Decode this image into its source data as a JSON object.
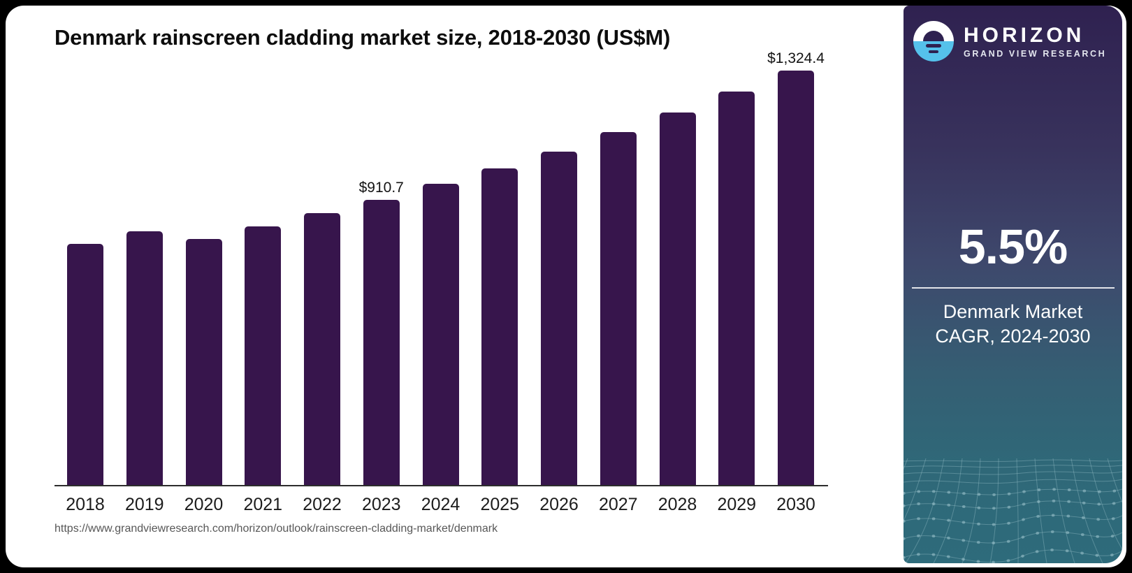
{
  "page": {
    "background": "#000000",
    "card_background": "#ffffff"
  },
  "chart_data": {
    "type": "bar",
    "title": "Denmark rainscreen cladding market size, 2018-2030 (US$M)",
    "categories": [
      "2018",
      "2019",
      "2020",
      "2021",
      "2022",
      "2023",
      "2024",
      "2025",
      "2026",
      "2027",
      "2028",
      "2029",
      "2030"
    ],
    "values": [
      770.7,
      810.2,
      787.2,
      827.4,
      868.2,
      910.7,
      962.0,
      1011.8,
      1065.4,
      1127.2,
      1189.7,
      1256.7,
      1324.4
    ],
    "data_labels": {
      "2023": "$910.7",
      "2030": "$1,324.4"
    },
    "bar_color": "#37154C",
    "xlabel": "",
    "ylabel": "",
    "ylim": [
      0,
      1400
    ],
    "grid": false,
    "legend": false,
    "axis_line_color": "#2d2d2d"
  },
  "footer": {
    "url": "https://www.grandviewresearch.com/horizon/outlook/rainscreen-cladding-market/denmark"
  },
  "sidebar": {
    "brand_name": "HORIZON",
    "brand_subtitle": "GRAND VIEW RESEARCH",
    "cagr_value": "5.5%",
    "cagr_label_line1": "Denmark Market",
    "cagr_label_line2": "CAGR, 2024-2030",
    "colors": {
      "gradient_top": "#2f2150",
      "gradient_middle": "#3e486c",
      "gradient_bottom": "#2e6b7b",
      "logo_blue": "#55c1eb",
      "mesh_line": "#9ec4cd"
    }
  }
}
